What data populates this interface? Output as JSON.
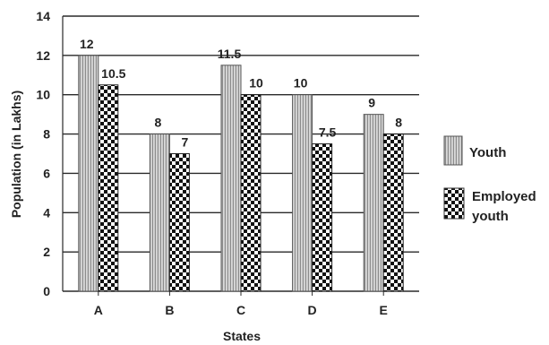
{
  "chart_data": {
    "type": "bar",
    "xlabel": "States",
    "ylabel": "Population (in Lakhs)",
    "categories": [
      "A",
      "B",
      "C",
      "D",
      "E"
    ],
    "ylim": [
      0,
      14
    ],
    "ytick_step": 2,
    "grid": "horizontal",
    "legend_position": "right",
    "series": [
      {
        "name": "Youth",
        "values": [
          12,
          8,
          11.5,
          10,
          9
        ],
        "labels": [
          "12",
          "8",
          "11.5",
          "10",
          "9"
        ],
        "pattern": "vertical-stripes"
      },
      {
        "name": "Employed youth",
        "legend_lines": [
          "Employed",
          "youth"
        ],
        "values": [
          10.5,
          7,
          10,
          7.5,
          8
        ],
        "labels": [
          "10.5",
          "7",
          "10",
          "7.5",
          "8"
        ],
        "pattern": "checkerboard"
      }
    ]
  }
}
